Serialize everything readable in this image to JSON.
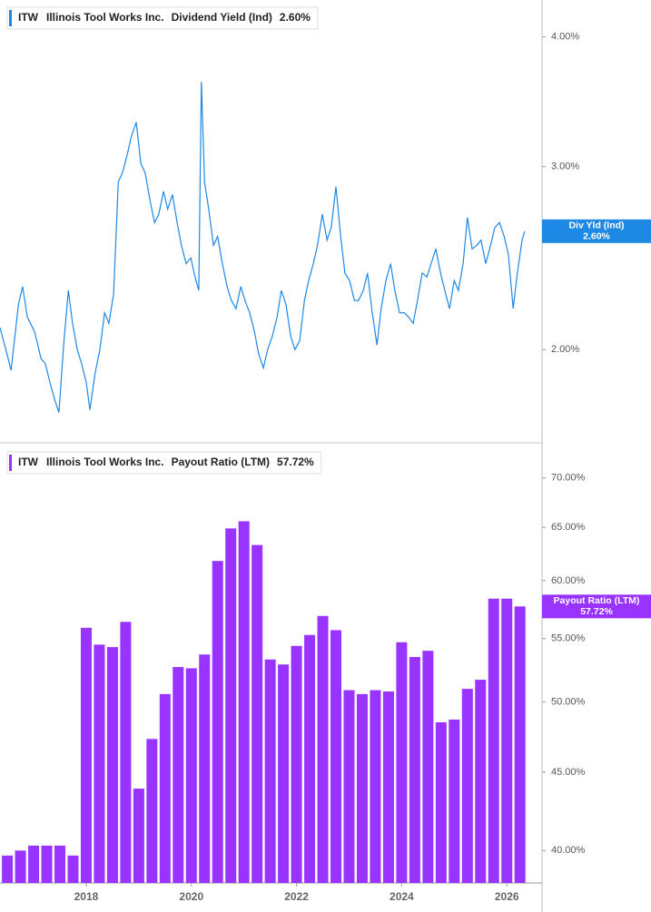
{
  "chart_data": [
    {
      "type": "line",
      "ticker": "ITW",
      "company": "Illinois Tool Works Inc.",
      "tag_label": "Div Yld (Ind)",
      "last_label": "2.60%",
      "log_scale": true,
      "xlim": [
        2016.36,
        2026.67
      ],
      "ylim": [
        1.63,
        4.34
      ],
      "yticks": [
        {
          "value": 2,
          "label": "2.00%"
        },
        {
          "value": 3,
          "label": "3.00%"
        },
        {
          "value": 4,
          "label": "4.00%"
        }
      ],
      "x": [
        2016.36,
        2016.45,
        2016.57,
        2016.71,
        2016.79,
        2016.88,
        2017.02,
        2017.14,
        2017.22,
        2017.31,
        2017.4,
        2017.48,
        2017.57,
        2017.66,
        2017.74,
        2017.83,
        2017.91,
        2018.0,
        2018.07,
        2018.17,
        2018.26,
        2018.35,
        2018.43,
        2018.52,
        2018.61,
        2018.69,
        2018.78,
        2018.86,
        2018.95,
        2019.04,
        2019.12,
        2019.21,
        2019.3,
        2019.38,
        2019.47,
        2019.55,
        2019.64,
        2019.73,
        2019.81,
        2019.9,
        2019.99,
        2020.07,
        2020.14,
        2020.19,
        2020.25,
        2020.33,
        2020.42,
        2020.5,
        2020.59,
        2020.68,
        2020.76,
        2020.85,
        2020.94,
        2021.02,
        2021.11,
        2021.2,
        2021.28,
        2021.37,
        2021.45,
        2021.54,
        2021.63,
        2021.71,
        2021.8,
        2021.89,
        2021.97,
        2022.06,
        2022.15,
        2022.23,
        2022.32,
        2022.4,
        2022.49,
        2022.58,
        2022.66,
        2022.75,
        2022.84,
        2022.92,
        2023.01,
        2023.1,
        2023.18,
        2023.27,
        2023.35,
        2023.44,
        2023.53,
        2023.61,
        2023.7,
        2023.79,
        2023.87,
        2023.96,
        2024.05,
        2024.13,
        2024.22,
        2024.3,
        2024.39,
        2024.48,
        2024.56,
        2024.65,
        2024.74,
        2024.82,
        2024.91,
        2025.0,
        2025.08,
        2025.17,
        2025.25,
        2025.34,
        2025.43,
        2025.51,
        2025.6,
        2025.69,
        2025.77,
        2025.86,
        2025.95,
        2026.03,
        2026.12,
        2026.2,
        2026.29,
        2026.34
      ],
      "series": [
        {
          "name": "Dividend Yield (Ind)",
          "color": "#1e88e5",
          "values": [
            2.1,
            2.02,
            1.91,
            2.21,
            2.3,
            2.15,
            2.08,
            1.96,
            1.94,
            1.86,
            1.79,
            1.74,
            2.02,
            2.28,
            2.12,
            2.0,
            1.94,
            1.86,
            1.75,
            1.9,
            2.0,
            2.17,
            2.12,
            2.26,
            2.9,
            2.96,
            3.08,
            3.21,
            3.31,
            3.02,
            2.96,
            2.79,
            2.65,
            2.7,
            2.84,
            2.73,
            2.82,
            2.65,
            2.52,
            2.42,
            2.45,
            2.35,
            2.28,
            3.62,
            2.9,
            2.73,
            2.52,
            2.57,
            2.42,
            2.3,
            2.23,
            2.19,
            2.3,
            2.23,
            2.17,
            2.08,
            1.98,
            1.92,
            2.0,
            2.06,
            2.15,
            2.28,
            2.21,
            2.06,
            2.0,
            2.04,
            2.23,
            2.33,
            2.42,
            2.52,
            2.7,
            2.55,
            2.62,
            2.87,
            2.57,
            2.37,
            2.33,
            2.23,
            2.23,
            2.28,
            2.37,
            2.17,
            2.02,
            2.19,
            2.33,
            2.42,
            2.28,
            2.17,
            2.17,
            2.15,
            2.12,
            2.23,
            2.37,
            2.35,
            2.42,
            2.5,
            2.37,
            2.28,
            2.19,
            2.33,
            2.28,
            2.42,
            2.68,
            2.5,
            2.52,
            2.55,
            2.42,
            2.52,
            2.62,
            2.65,
            2.57,
            2.47,
            2.19,
            2.37,
            2.55,
            2.6
          ]
        }
      ]
    },
    {
      "type": "bar",
      "ticker": "ITW",
      "company": "Illinois Tool Works Inc.",
      "tag_label": "Payout Ratio (LTM)",
      "last_label": "57.72%",
      "log_scale": true,
      "xlim": [
        2016.36,
        2026.67
      ],
      "ylim": [
        38.1,
        73.6
      ],
      "xticks": [
        2018,
        2020,
        2022,
        2024,
        2026
      ],
      "yticks": [
        {
          "value": 40,
          "label": "40.00%"
        },
        {
          "value": 45,
          "label": "45.00%"
        },
        {
          "value": 50,
          "label": "50.00%"
        },
        {
          "value": 55,
          "label": "55.00%"
        },
        {
          "value": 60,
          "label": "60.00%"
        },
        {
          "value": 65,
          "label": "65.00%"
        },
        {
          "value": 70,
          "label": "70.00%"
        }
      ],
      "x": [
        2016.5,
        2016.75,
        2017,
        2017.25,
        2017.5,
        2017.75,
        2018,
        2018.25,
        2018.5,
        2018.75,
        2019,
        2019.25,
        2019.5,
        2019.75,
        2020,
        2020.25,
        2020.5,
        2020.75,
        2021,
        2021.25,
        2021.5,
        2021.75,
        2022,
        2022.25,
        2022.5,
        2022.75,
        2023,
        2023.25,
        2023.5,
        2023.75,
        2024,
        2024.25,
        2024.5,
        2024.75,
        2025,
        2025.25,
        2025.5,
        2025.75,
        2026,
        2026.25
      ],
      "series": [
        {
          "name": "Payout Ratio (LTM)",
          "color": "#9933ff",
          "values": [
            39.7,
            40.0,
            40.3,
            40.3,
            40.3,
            39.7,
            55.9,
            54.5,
            54.3,
            56.4,
            43.9,
            47.3,
            50.6,
            52.7,
            52.6,
            53.7,
            61.8,
            64.9,
            65.6,
            63.3,
            53.3,
            52.9,
            54.4,
            55.3,
            56.9,
            55.7,
            50.9,
            50.6,
            50.9,
            50.8,
            54.7,
            53.5,
            54.0,
            48.5,
            48.7,
            51.0,
            51.7,
            58.4,
            58.4,
            57.72
          ]
        }
      ]
    }
  ]
}
